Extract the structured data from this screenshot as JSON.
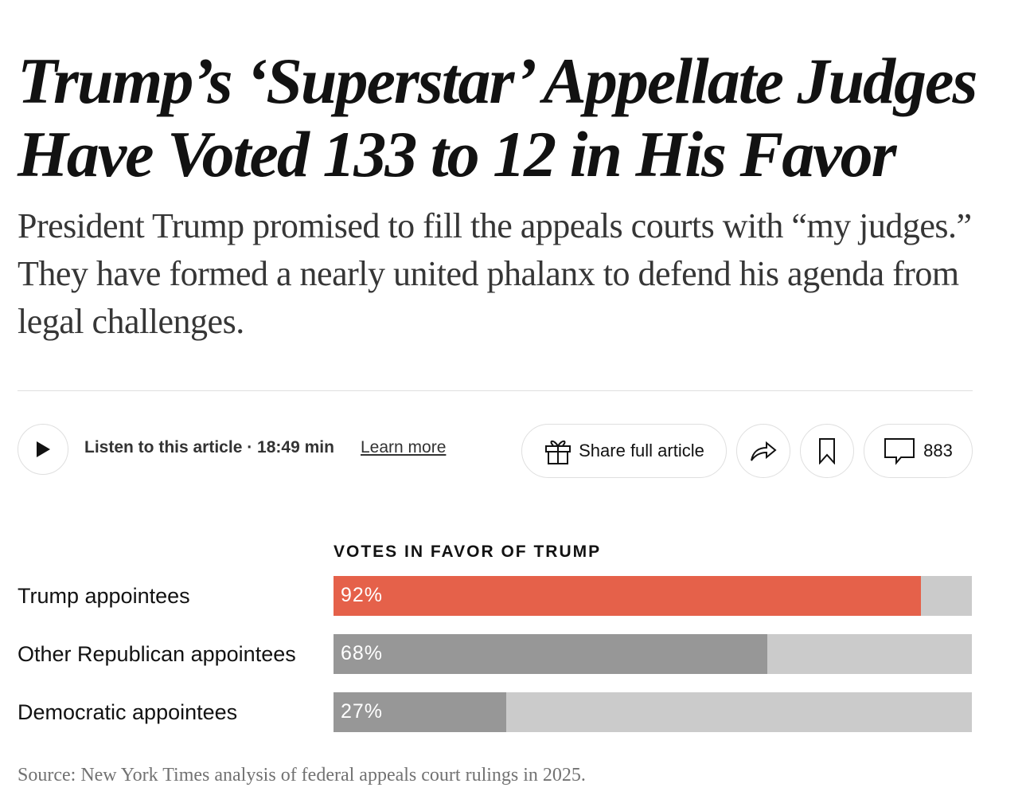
{
  "headline": "Trump’s ‘Superstar’ Appellate Judges Have Voted 133 to 12 in His Favor",
  "summary": "President Trump promised to fill the appeals courts with “my judges.” They have formed a nearly united phalanx to defend his agenda from legal challenges.",
  "toolbar": {
    "listen": "Listen to this article · 18:49 min",
    "learn_more": "Learn more",
    "share_full": "Share full article",
    "comment_count": "883"
  },
  "chart_data": {
    "type": "bar",
    "title": "VOTES IN FAVOR OF TRUMP",
    "categories": [
      "Trump appointees",
      "Other Republican appointees",
      "Democratic appointees"
    ],
    "values": [
      92,
      68,
      27
    ],
    "labels": [
      "92%",
      "68%",
      "27%"
    ],
    "colors": [
      "#e5614a",
      "#979797",
      "#979797"
    ],
    "track_color": "#cbcbcb",
    "xlim": [
      0,
      100
    ],
    "source": "Source: New York Times analysis of federal appeals court rulings in 2025."
  }
}
